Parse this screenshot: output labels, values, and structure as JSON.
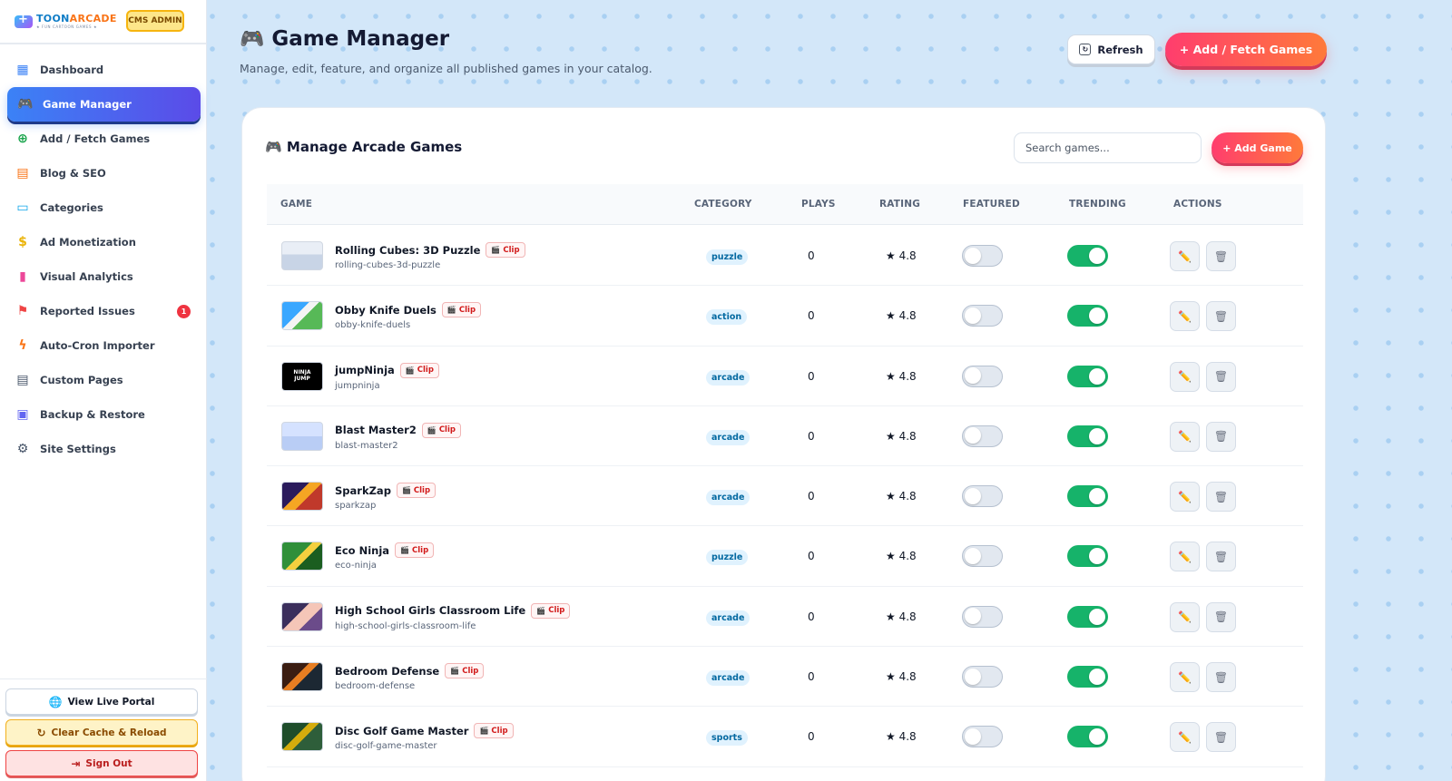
{
  "brand": {
    "name_part1": "TOON",
    "name_part2": "ARCADE",
    "tagline": "★ FUN CARTOON GAMES ★",
    "badge": "CMS ADMIN"
  },
  "nav": [
    {
      "label": "Dashboard",
      "icon": "grid-icon",
      "active": false
    },
    {
      "label": "Game Manager",
      "icon": "gamepad-icon",
      "active": true
    },
    {
      "label": "Add / Fetch Games",
      "icon": "plus-circle-icon",
      "active": false
    },
    {
      "label": "Blog & SEO",
      "icon": "document-icon",
      "active": false
    },
    {
      "label": "Categories",
      "icon": "folder-icon",
      "active": false
    },
    {
      "label": "Ad Monetization",
      "icon": "coin-icon",
      "active": false
    },
    {
      "label": "Visual Analytics",
      "icon": "bar-chart-icon",
      "active": false
    },
    {
      "label": "Reported Issues",
      "icon": "flag-icon",
      "active": false,
      "badge": "1"
    },
    {
      "label": "Auto-Cron Importer",
      "icon": "bolt-icon",
      "active": false
    },
    {
      "label": "Custom Pages",
      "icon": "page-icon",
      "active": false
    },
    {
      "label": "Backup & Restore",
      "icon": "save-icon",
      "active": false
    },
    {
      "label": "Site Settings",
      "icon": "gear-icon",
      "active": false
    }
  ],
  "sidebar_actions": {
    "live": "View Live Portal",
    "cache": "Clear Cache & Reload",
    "signout": "Sign Out"
  },
  "header": {
    "icon": "🎮",
    "title": "Game Manager",
    "subtitle": "Manage, edit, feature, and organize all published games in your catalog.",
    "refresh": "Refresh",
    "add_fetch": "+ Add / Fetch Games"
  },
  "card": {
    "title": "🎮 Manage Arcade Games",
    "search_placeholder": "Search games...",
    "add_game": "+ Add Game",
    "columns": [
      "GAME",
      "CATEGORY",
      "PLAYS",
      "RATING",
      "FEATURED",
      "TRENDING",
      "ACTIONS"
    ]
  },
  "clip_label": "Clip",
  "games": [
    {
      "name": "Rolling Cubes: 3D Puzzle",
      "slug": "rolling-cubes-3d-puzzle",
      "category": "puzzle",
      "plays": "0",
      "rating": "★ 4.8",
      "featured": false,
      "trending": true,
      "thumb": "thumb-rolling-cubes"
    },
    {
      "name": "Obby Knife Duels",
      "slug": "obby-knife-duels",
      "category": "action",
      "plays": "0",
      "rating": "★ 4.8",
      "featured": false,
      "trending": true,
      "thumb": "thumb-obby-knife"
    },
    {
      "name": "jumpNinja",
      "slug": "jumpninja",
      "category": "arcade",
      "plays": "0",
      "rating": "★ 4.8",
      "featured": false,
      "trending": true,
      "thumb": "thumb-jumpninja",
      "thumb_text": "NINJA JUMP"
    },
    {
      "name": "Blast Master2",
      "slug": "blast-master2",
      "category": "arcade",
      "plays": "0",
      "rating": "★ 4.8",
      "featured": false,
      "trending": true,
      "thumb": "thumb-blast-master"
    },
    {
      "name": "SparkZap",
      "slug": "sparkzap",
      "category": "arcade",
      "plays": "0",
      "rating": "★ 4.8",
      "featured": false,
      "trending": true,
      "thumb": "thumb-sparkzap"
    },
    {
      "name": "Eco Ninja",
      "slug": "eco-ninja",
      "category": "puzzle",
      "plays": "0",
      "rating": "★ 4.8",
      "featured": false,
      "trending": true,
      "thumb": "thumb-eco-ninja"
    },
    {
      "name": "High School Girls Classroom Life",
      "slug": "high-school-girls-classroom-life",
      "category": "arcade",
      "plays": "0",
      "rating": "★ 4.8",
      "featured": false,
      "trending": true,
      "thumb": "thumb-high-school"
    },
    {
      "name": "Bedroom Defense",
      "slug": "bedroom-defense",
      "category": "arcade",
      "plays": "0",
      "rating": "★ 4.8",
      "featured": false,
      "trending": true,
      "thumb": "thumb-bedroom-defense"
    },
    {
      "name": "Disc Golf Game Master",
      "slug": "disc-golf-game-master",
      "category": "sports",
      "plays": "0",
      "rating": "★ 4.8",
      "featured": false,
      "trending": true,
      "thumb": "thumb-disc-golf"
    }
  ],
  "action_icons": {
    "edit": "✏️",
    "delete": "🗑"
  }
}
